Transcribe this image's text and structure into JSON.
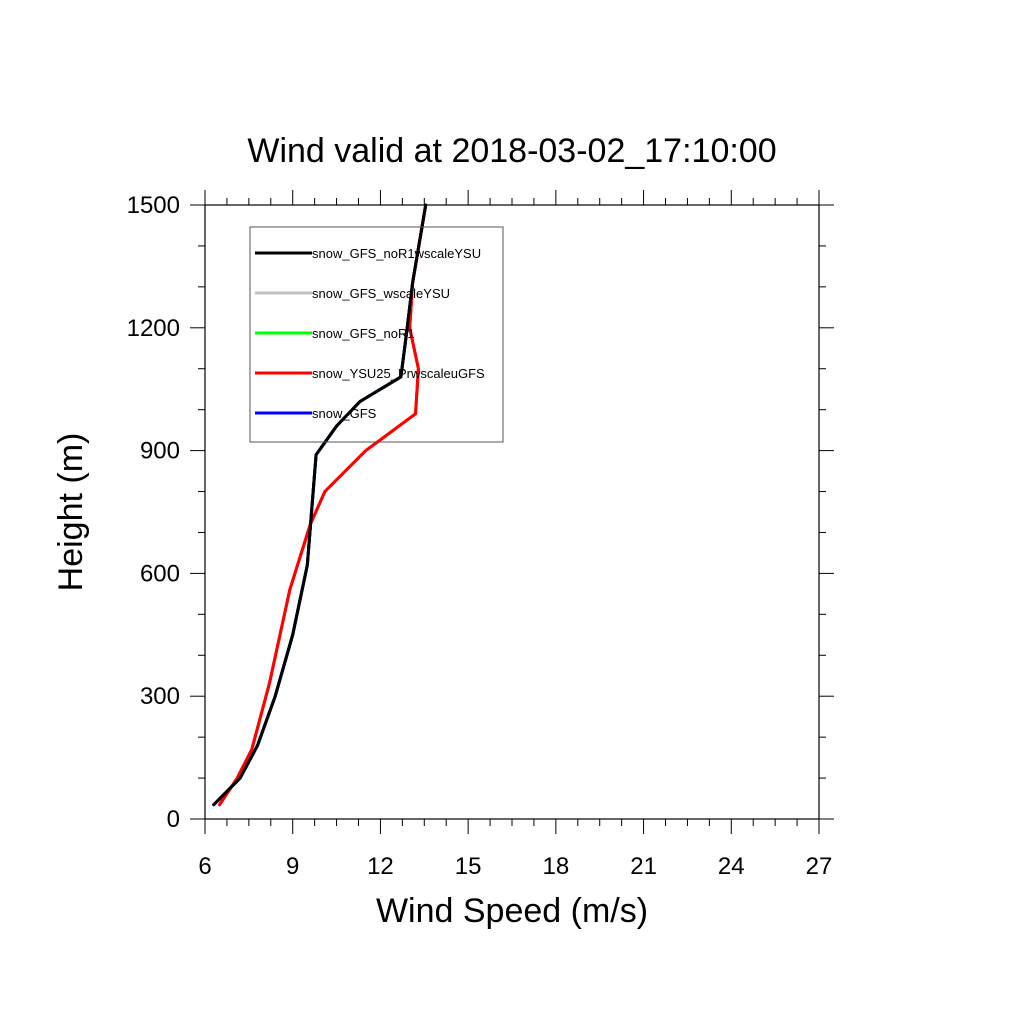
{
  "chart_data": {
    "type": "line",
    "title": "Wind valid at 2018-03-02_17:10:00",
    "xlabel": "Wind Speed (m/s)",
    "ylabel": "Height (m)",
    "xlim": [
      6,
      27
    ],
    "ylim": [
      0,
      1500
    ],
    "xticks": [
      "6",
      "9",
      "12",
      "15",
      "18",
      "21",
      "24",
      "27"
    ],
    "yticks": [
      "0",
      "300",
      "600",
      "900",
      "1200",
      "1500"
    ],
    "grid": false,
    "legend_position": "top-left",
    "series": [
      {
        "name": "snow_GFS_noR1wscaleYSU",
        "color": "#000000",
        "x": [
          6.3,
          7.2,
          7.8,
          8.4,
          9.0,
          9.5,
          9.8,
          10.5,
          11.3,
          12.7,
          12.9,
          13.1,
          13.55
        ],
        "y": [
          35,
          100,
          180,
          300,
          450,
          620,
          890,
          960,
          1020,
          1080,
          1190,
          1310,
          1500
        ]
      },
      {
        "name": "snow_GFS_wscaleYSU",
        "color": "#c0c0c0",
        "x": [
          6.3,
          7.2,
          7.8,
          8.4,
          9.0,
          9.5,
          9.8,
          10.5,
          11.3,
          12.7,
          12.9,
          13.1,
          13.55
        ],
        "y": [
          35,
          100,
          180,
          300,
          450,
          620,
          890,
          960,
          1020,
          1080,
          1190,
          1310,
          1500
        ]
      },
      {
        "name": "snow_GFS_noR1",
        "color": "#00ff00",
        "x": [
          6.3,
          7.2,
          7.8,
          8.4,
          9.0,
          9.5,
          9.8,
          10.5,
          11.3,
          12.7,
          12.9,
          13.1,
          13.55
        ],
        "y": [
          35,
          100,
          180,
          300,
          450,
          620,
          890,
          960,
          1020,
          1080,
          1190,
          1310,
          1500
        ]
      },
      {
        "name": "snow_YSU25_PrwscaleuGFS",
        "color": "#ff0000",
        "x": [
          6.5,
          7.1,
          7.6,
          8.2,
          8.9,
          9.6,
          10.1,
          11.5,
          13.2,
          13.3,
          13.0,
          13.1,
          13.55
        ],
        "y": [
          35,
          100,
          170,
          330,
          560,
          720,
          800,
          900,
          990,
          1100,
          1200,
          1310,
          1500
        ]
      },
      {
        "name": "snow_GFS",
        "color": "#0000ff",
        "x": [
          6.3,
          7.2,
          7.8,
          8.4,
          9.0,
          9.5,
          9.8,
          10.5,
          11.3,
          12.7,
          12.9,
          13.1,
          13.55
        ],
        "y": [
          35,
          100,
          180,
          300,
          450,
          620,
          890,
          960,
          1020,
          1080,
          1190,
          1310,
          1500
        ]
      }
    ]
  }
}
